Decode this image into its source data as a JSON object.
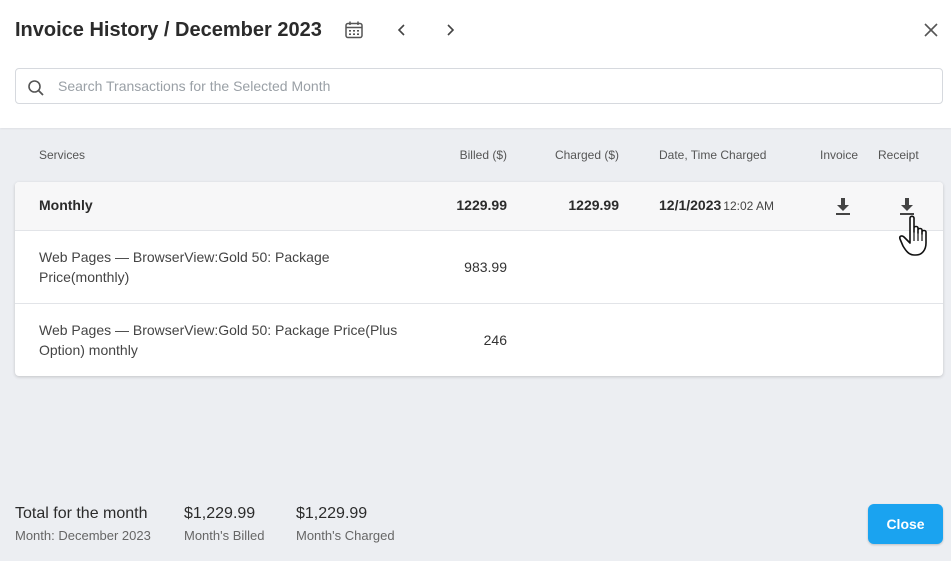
{
  "header": {
    "title": "Invoice History / December 2023"
  },
  "search": {
    "placeholder": "Search Transactions for the Selected Month",
    "value": ""
  },
  "columns": {
    "services": "Services",
    "billed": "Billed ($)",
    "charged": "Charged ($)",
    "date_time": "Date, Time Charged",
    "invoice": "Invoice",
    "receipt": "Receipt"
  },
  "rows": [
    {
      "service": "Monthly",
      "billed": "1229.99",
      "charged": "1229.99",
      "date": "12/1/2023",
      "time": "12:02 AM"
    },
    {
      "service": "Web Pages — BrowserView:Gold 50: Package Price(monthly)",
      "billed": "983.99"
    },
    {
      "service": "Web Pages — BrowserView:Gold 50: Package Price(Plus Option) monthly",
      "billed": "246"
    }
  ],
  "footer": {
    "total_label": "Total for the month",
    "month_label": "Month: December 2023",
    "billed_value": "$1,229.99",
    "billed_label": "Month's Billed",
    "charged_value": "$1,229.99",
    "charged_label": "Month's Charged",
    "close_label": "Close"
  },
  "icons": {
    "calendar": "calendar-icon",
    "prev": "chevron-left-icon",
    "next": "chevron-right-icon",
    "close": "close-icon",
    "search": "search-icon",
    "download": "download-icon",
    "cursor": "hand-pointer-icon"
  },
  "colors": {
    "accent": "#1aa3f0",
    "background": "#eceef2"
  }
}
